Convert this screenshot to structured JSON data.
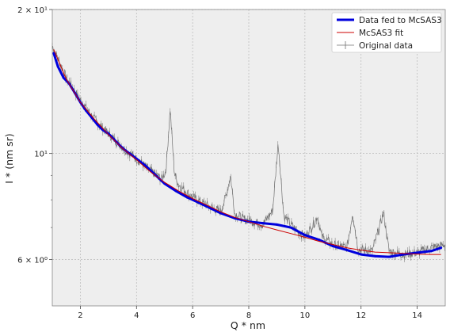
{
  "chart_data": {
    "type": "line",
    "xlabel": "Q * nm",
    "ylabel": "I * (nm sr)",
    "xlim": [
      1.0,
      15.0
    ],
    "ylim": [
      4.8,
      20.0
    ],
    "yscale": "log",
    "grid": true,
    "legend_position": "top-right",
    "x_ticks": [
      2,
      4,
      6,
      8,
      10,
      12,
      14
    ],
    "x_tick_labels": [
      "2",
      "4",
      "6",
      "8",
      "10",
      "12",
      "14"
    ],
    "y_ticks": [
      6,
      10,
      20
    ],
    "y_tick_labels": [
      "6 × 10⁰",
      "10¹",
      "2 × 10¹"
    ],
    "series": [
      {
        "name": "Data fed to McSAS3",
        "color": "#0000dd",
        "x": [
          1.05,
          1.2,
          1.4,
          1.6,
          1.8,
          2.0,
          2.2,
          2.4,
          2.6,
          2.8,
          3.0,
          3.2,
          3.4,
          3.6,
          3.8,
          4.0,
          4.3,
          4.6,
          5.0,
          5.4,
          5.8,
          6.2,
          6.6,
          7.0,
          7.5,
          8.0,
          8.5,
          9.0,
          9.5,
          10.0,
          10.5,
          11.0,
          11.5,
          12.0,
          12.5,
          13.0,
          13.5,
          14.0,
          14.5,
          14.85
        ],
        "y": [
          16.2,
          15.2,
          14.4,
          14.0,
          13.4,
          12.8,
          12.3,
          11.9,
          11.5,
          11.2,
          11.0,
          10.7,
          10.4,
          10.15,
          9.95,
          9.75,
          9.45,
          9.1,
          8.65,
          8.35,
          8.1,
          7.9,
          7.7,
          7.5,
          7.32,
          7.2,
          7.15,
          7.1,
          7.0,
          6.75,
          6.6,
          6.4,
          6.28,
          6.15,
          6.1,
          6.08,
          6.15,
          6.2,
          6.25,
          6.35
        ]
      },
      {
        "name": "McSAS3 fit",
        "color": "#cc0000",
        "x": [
          1.05,
          1.5,
          2.0,
          2.5,
          3.0,
          3.5,
          4.0,
          4.5,
          5.0,
          5.5,
          6.0,
          6.5,
          7.0,
          7.5,
          8.0,
          8.5,
          9.0,
          9.5,
          10.0,
          10.5,
          11.0,
          11.5,
          12.0,
          12.5,
          13.0,
          13.5,
          14.0,
          14.5,
          14.85
        ],
        "y": [
          16.5,
          14.3,
          12.8,
          11.8,
          10.95,
          10.25,
          9.7,
          9.15,
          8.7,
          8.35,
          8.05,
          7.8,
          7.55,
          7.35,
          7.2,
          7.05,
          6.92,
          6.8,
          6.68,
          6.55,
          6.45,
          6.35,
          6.28,
          6.22,
          6.2,
          6.18,
          6.16,
          6.15,
          6.15
        ]
      },
      {
        "name": "Original data",
        "color": "#707070",
        "x": [
          1.0,
          1.5,
          2.0,
          2.5,
          3.0,
          3.5,
          4.0,
          4.5,
          4.9,
          5.05,
          5.2,
          5.35,
          5.5,
          6.0,
          6.5,
          7.0,
          7.2,
          7.35,
          7.5,
          7.8,
          8.0,
          8.5,
          8.85,
          9.05,
          9.25,
          9.6,
          10.0,
          10.3,
          10.45,
          10.6,
          11.0,
          11.5,
          11.7,
          11.9,
          12.4,
          12.8,
          13.0,
          13.5,
          14.0,
          14.5,
          15.0
        ],
        "y": [
          16.8,
          14.4,
          12.9,
          11.8,
          11.0,
          10.3,
          9.75,
          9.2,
          8.85,
          9.2,
          12.4,
          9.1,
          8.6,
          8.1,
          7.8,
          7.55,
          8.2,
          9.0,
          7.5,
          7.3,
          7.25,
          7.1,
          7.6,
          10.5,
          7.4,
          7.0,
          6.7,
          7.1,
          7.4,
          6.7,
          6.45,
          6.35,
          7.5,
          6.3,
          6.25,
          7.5,
          6.25,
          6.15,
          6.2,
          6.35,
          6.45
        ]
      }
    ]
  }
}
